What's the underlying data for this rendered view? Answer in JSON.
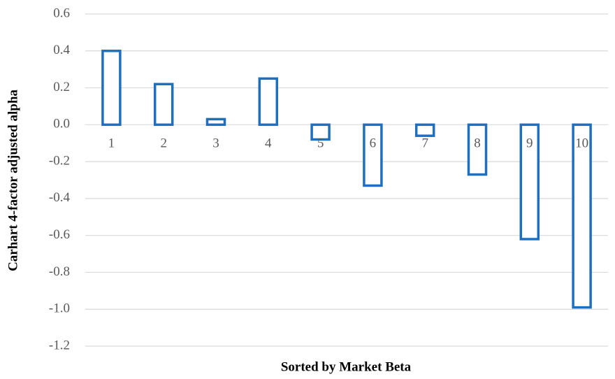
{
  "chart_data": {
    "type": "bar",
    "x_label": "Sorted by Market Beta",
    "y_label": "Carhart 4-factor adjusted alpha",
    "categories": [
      "1",
      "2",
      "3",
      "4",
      "5",
      "6",
      "7",
      "8",
      "9",
      "10"
    ],
    "values": [
      0.4,
      0.22,
      0.03,
      0.25,
      -0.08,
      -0.33,
      -0.06,
      -0.27,
      -0.62,
      -0.99
    ],
    "color": "#1f6fbf",
    "ylim": [
      -1.2,
      0.6
    ],
    "yticks": [
      0.6,
      0.4,
      0.2,
      {
        "value": 0,
        "label": "0.0"
      },
      -0.2,
      -0.4,
      -0.6,
      -0.8,
      {
        "value": -1,
        "label": "-1.0"
      },
      -1.2
    ],
    "grid": true
  }
}
